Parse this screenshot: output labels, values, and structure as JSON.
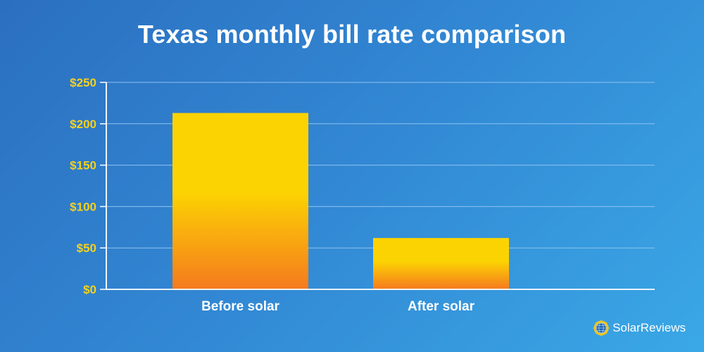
{
  "chart_data": {
    "type": "bar",
    "title": "Texas monthly bill rate comparison",
    "categories": [
      "Before solar",
      "After solar"
    ],
    "values": [
      213,
      62
    ],
    "ylim": [
      0,
      250
    ],
    "yticks": [
      0,
      50,
      100,
      150,
      200,
      250
    ],
    "ytick_labels": [
      "$0",
      "$50",
      "$100",
      "$150",
      "$200",
      "$250"
    ],
    "xlabel": "",
    "ylabel": "",
    "grid": true
  },
  "colors": {
    "bar_top": "#fcd302",
    "bar_bottom": "#f57a1f",
    "tick_label": "#f5d21c",
    "gridline": "#8fc2ee"
  },
  "brand": {
    "name": "SolarReviews",
    "icon": "sun-globe-icon"
  }
}
